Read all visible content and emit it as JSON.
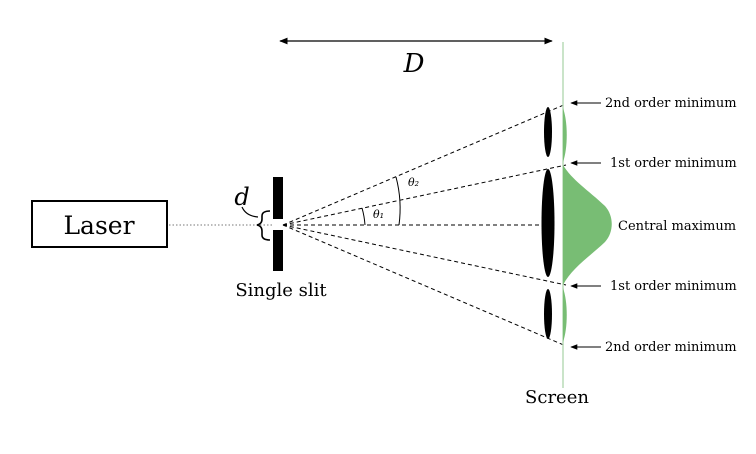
{
  "labels": {
    "distance": "D",
    "slit_width": "d",
    "laser": "Laser",
    "slit": "Single slit",
    "screen": "Screen",
    "theta1": "θ₁",
    "theta2": "θ₂"
  },
  "annotations": [
    {
      "id": "second-min-top",
      "text": "2nd order minimum"
    },
    {
      "id": "first-min-top",
      "text": "1st order minimum"
    },
    {
      "id": "central-max",
      "text": "Central maximum"
    },
    {
      "id": "first-min-bottom",
      "text": "1st order minimum"
    },
    {
      "id": "second-min-bottom",
      "text": "2nd order minimum"
    }
  ],
  "colors": {
    "ink": "#000000",
    "intensity_fill": "#78bd74"
  }
}
